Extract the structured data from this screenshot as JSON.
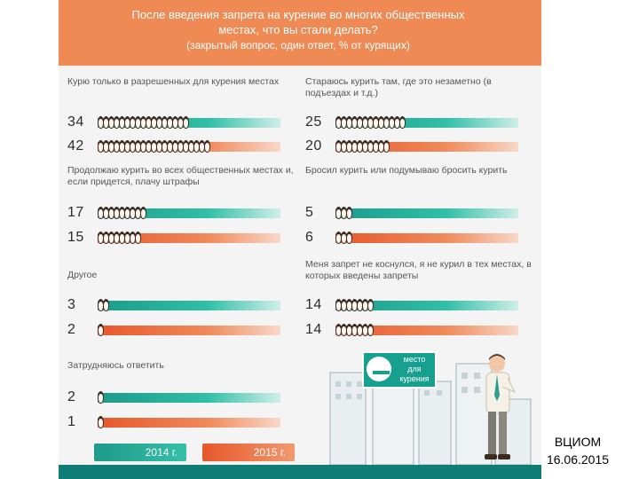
{
  "header": {
    "line1": "После введения запрета на курение во многих общественных",
    "line2": "местах, что вы стали делать?",
    "line3": "(закрытый вопрос, один ответ, % от курящих)"
  },
  "colors": {
    "header": "#ef8a55",
    "series_2014": "#1d9a8a",
    "series_2015": "#e6572b",
    "background": "#f4f4f4"
  },
  "chart_data": {
    "type": "bar",
    "title": "После введения запрета на курение во многих общественных местах, что вы стали делать?",
    "subtitle": "(закрытый вопрос, один ответ, % от курящих)",
    "series": [
      {
        "name": "2014 г.",
        "color": "#1d9a8a"
      },
      {
        "name": "2015 г.",
        "color": "#e6572b"
      }
    ],
    "categories": [
      {
        "label": "Курю только в разрешенных для курения местах",
        "values": [
          34,
          42
        ]
      },
      {
        "label": "Продолжаю курить во всех общественных местах и, если придется, плачу штрафы",
        "values": [
          17,
          15
        ]
      },
      {
        "label": "Другое",
        "values": [
          3,
          2
        ]
      },
      {
        "label": "Затрудняюсь ответить",
        "values": [
          2,
          1
        ]
      },
      {
        "label": "Стараюсь курить там, где это незаметно (в подъездах и т.д.)",
        "values": [
          25,
          20
        ]
      },
      {
        "label": "Бросил курить или подумываю бросить курить",
        "values": [
          5,
          6
        ]
      },
      {
        "label": "Меня запрет не коснулся, я не курил в тех местах, в которых введены запреты",
        "values": [
          14,
          14
        ]
      }
    ],
    "unit": "%",
    "legend": [
      "2014 г.",
      "2015 г."
    ]
  },
  "sign": {
    "line1": "место",
    "line2": "для",
    "line3": "курения"
  },
  "source": {
    "org": "ВЦИОМ",
    "date": "16.06.2015"
  }
}
